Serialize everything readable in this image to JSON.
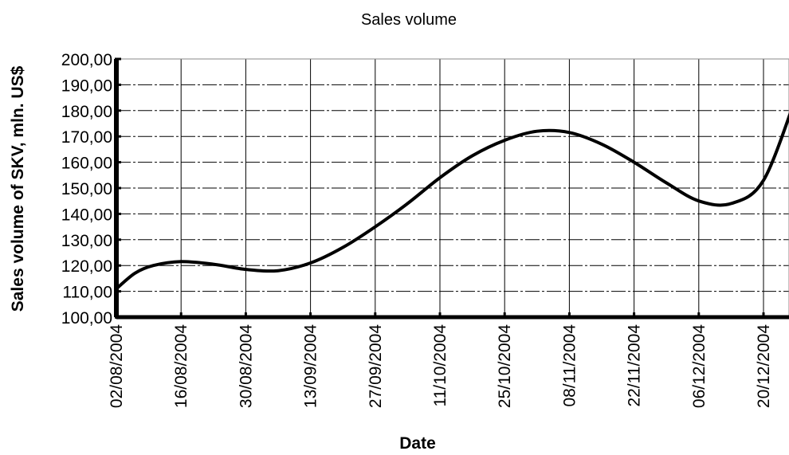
{
  "chart_data": {
    "type": "line",
    "title": "Sales volume",
    "xlabel": "Date",
    "ylabel": "Sales volume of SKV, mln. US$",
    "ylim": [
      100,
      200
    ],
    "y_ticks": [
      "100,00",
      "110,00",
      "120,00",
      "130,00",
      "140,00",
      "150,00",
      "160,00",
      "170,00",
      "180,00",
      "190,00",
      "200,00"
    ],
    "x_ticks": [
      "02/08/2004",
      "16/08/2004",
      "30/08/2004",
      "13/09/2004",
      "27/09/2004",
      "11/10/2004",
      "25/10/2004",
      "08/11/2004",
      "22/11/2004",
      "06/12/2004",
      "20/12/2004"
    ],
    "x_range": [
      "02/08/2004",
      "27/12/2004"
    ],
    "grid": true,
    "series": [
      {
        "x": [
          "02/08/2004",
          "06/08/2004",
          "10/08/2004",
          "16/08/2004",
          "23/08/2004",
          "30/08/2004",
          "06/09/2004",
          "13/09/2004",
          "20/09/2004",
          "27/09/2004",
          "04/10/2004",
          "11/10/2004",
          "18/10/2004",
          "25/10/2004",
          "01/11/2004",
          "08/11/2004",
          "15/11/2004",
          "22/11/2004",
          "29/11/2004",
          "06/12/2004",
          "13/12/2004",
          "20/12/2004",
          "27/12/2004"
        ],
        "values": [
          111,
          117,
          120,
          121.5,
          120.5,
          118.5,
          118,
          121,
          127,
          135,
          144,
          154,
          162.5,
          168.5,
          172,
          171.5,
          167,
          160,
          152,
          145,
          144,
          153,
          185
        ]
      }
    ],
    "series_color": "#000000"
  }
}
